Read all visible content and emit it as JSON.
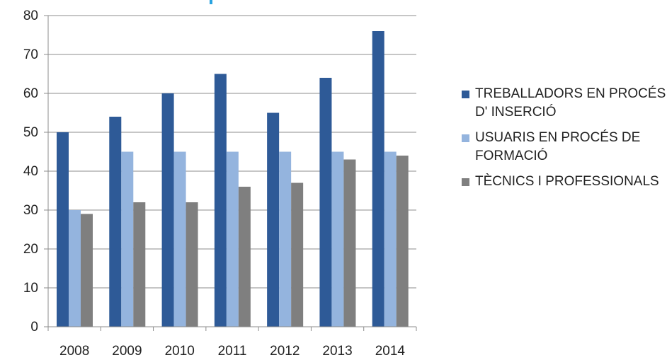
{
  "chart_data": {
    "type": "bar",
    "categories": [
      "2008",
      "2009",
      "2010",
      "2011",
      "2012",
      "2013",
      "2014"
    ],
    "series": [
      {
        "name": "TREBALLADORS EN PROCÉS D' INSERCIÓ",
        "color": "#2e5a97",
        "values": [
          50,
          54,
          60,
          65,
          55,
          64,
          76
        ]
      },
      {
        "name": "USUARIS EN PROCÉS DE FORMACIÓ",
        "color": "#94b4de",
        "values": [
          30,
          45,
          45,
          45,
          45,
          45,
          45
        ]
      },
      {
        "name": "TÈCNICS I PROFESSIONALS",
        "color": "#7f7f7f",
        "values": [
          29,
          32,
          32,
          36,
          37,
          43,
          44
        ]
      }
    ],
    "yticks": [
      "0",
      "10",
      "20",
      "30",
      "40",
      "50",
      "60",
      "70",
      "80"
    ],
    "ylim": [
      0,
      80
    ],
    "grid": true,
    "legend_position": "right"
  }
}
